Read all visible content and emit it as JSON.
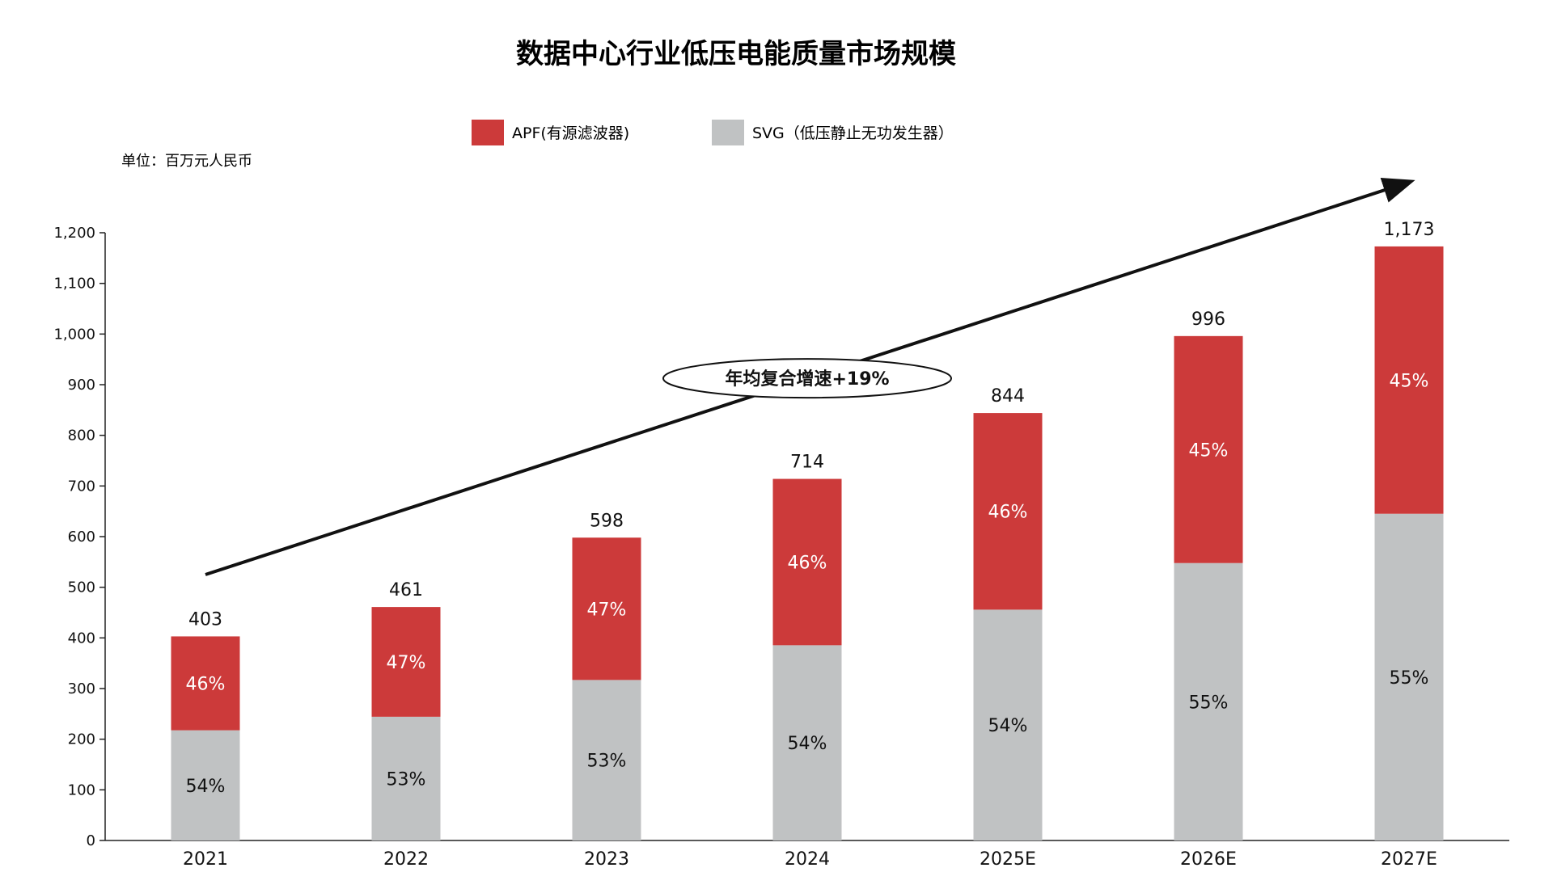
{
  "chart_data": {
    "type": "bar",
    "stacked": true,
    "title": "数据中心行业低压电能质量市场规模",
    "unit_label": "单位：百万元人民币",
    "categories": [
      "2021",
      "2022",
      "2023",
      "2024",
      "2025E",
      "2026E",
      "2027E"
    ],
    "totals": [
      403,
      461,
      598,
      714,
      844,
      996,
      1173
    ],
    "total_labels": [
      "403",
      "461",
      "598",
      "714",
      "844",
      "996",
      "1,173"
    ],
    "series": [
      {
        "name": "SVG（低压静止无功发生器）",
        "color": "#c0c2c3",
        "label_color": "#111111",
        "shares": [
          0.54,
          0.53,
          0.53,
          0.54,
          0.54,
          0.55,
          0.55
        ],
        "labels": [
          "54%",
          "53%",
          "53%",
          "54%",
          "54%",
          "55%",
          "55%"
        ]
      },
      {
        "name": "APF(有源滤波器)",
        "color": "#cc3a3a",
        "label_color": "#ffffff",
        "shares": [
          0.46,
          0.47,
          0.47,
          0.46,
          0.46,
          0.45,
          0.45
        ],
        "labels": [
          "46%",
          "47%",
          "47%",
          "46%",
          "46%",
          "45%",
          "45%"
        ]
      }
    ],
    "ylim": [
      0,
      1200
    ],
    "y_ticks": [
      0,
      100,
      200,
      300,
      400,
      500,
      600,
      700,
      800,
      900,
      1000,
      1100,
      1200
    ],
    "y_tick_labels": [
      "0",
      "100",
      "200",
      "300",
      "400",
      "500",
      "600",
      "700",
      "800",
      "900",
      "1,000",
      "1,100",
      "1,200"
    ],
    "legend_position": "top-center",
    "annotation": {
      "text": "年均复合增速+19%",
      "arrow_from": {
        "x": "2021",
        "y": 525
      },
      "arrow_to": {
        "x": "2027E",
        "y": 1300
      }
    }
  }
}
